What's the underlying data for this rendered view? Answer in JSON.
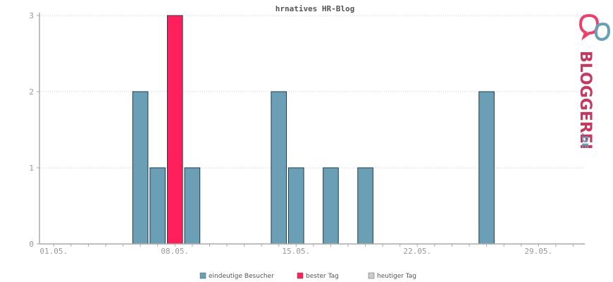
{
  "chart_data": {
    "type": "bar",
    "title": "hrnatives HR-Blog",
    "x_tick_labels": [
      "01.05.",
      "08.05.",
      "15.05.",
      "22.05.",
      "29.05."
    ],
    "days": [
      1,
      2,
      3,
      4,
      5,
      6,
      7,
      8,
      9,
      10,
      11,
      12,
      13,
      14,
      15,
      16,
      17,
      18,
      19,
      20,
      21,
      22,
      23,
      24,
      25,
      26,
      27,
      28,
      29,
      30,
      31
    ],
    "series": [
      {
        "name": "eindeutige Besucher",
        "values": [
          0,
          0,
          0,
          0,
          0,
          2,
          1,
          3,
          1,
          0,
          0,
          0,
          0,
          2,
          1,
          0,
          1,
          0,
          1,
          0,
          0,
          0,
          0,
          0,
          0,
          2,
          0,
          0,
          0,
          0,
          0
        ]
      }
    ],
    "best_day": 8,
    "ylim": [
      0,
      3
    ],
    "y_ticks": [
      0,
      1,
      2,
      3
    ],
    "grid": true,
    "legend": [
      {
        "label": "eindeutige Besucher",
        "color": "#6a9fb5"
      },
      {
        "label": "bester Tag",
        "color": "#ff1f5a"
      },
      {
        "label": "heutiger Tag",
        "color": "#cccccc"
      }
    ],
    "legend_position": "bottom",
    "colors": {
      "bar": "#6a9fb5",
      "best": "#ff1f5a",
      "bar_stroke": "#1f3d4d",
      "axis": "#aaaaaa",
      "grid": "#cccccc"
    }
  },
  "logo": {
    "text": "BLOGGEREI",
    "suffix": ".DE",
    "icon": "bloggerei-bubbles-icon"
  }
}
